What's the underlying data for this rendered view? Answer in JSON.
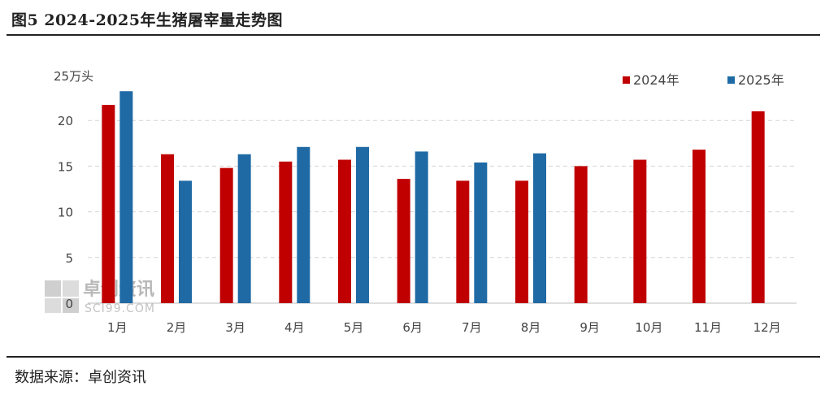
{
  "header": {
    "title": "图5 2024-2025年生猪屠宰量走势图"
  },
  "footer": {
    "source": "数据来源：卓创资讯"
  },
  "watermark": {
    "text": "卓创资讯",
    "sub": "SCI99.COM"
  },
  "chart_data": {
    "type": "bar",
    "unit_label": "25万头",
    "categories": [
      "1月",
      "2月",
      "3月",
      "4月",
      "5月",
      "6月",
      "7月",
      "8月",
      "9月",
      "10月",
      "11月",
      "12月"
    ],
    "series": [
      {
        "name": "2024年",
        "color": "#c00000",
        "values": [
          21.7,
          16.3,
          14.8,
          15.5,
          15.7,
          13.6,
          13.4,
          13.4,
          15.0,
          15.7,
          16.8,
          21.0
        ]
      },
      {
        "name": "2025年",
        "color": "#1f6aa5",
        "values": [
          23.2,
          13.4,
          16.3,
          17.1,
          17.1,
          16.6,
          15.4,
          16.4,
          null,
          null,
          null,
          null
        ]
      }
    ],
    "yticks": [
      0,
      5,
      10,
      15,
      20
    ],
    "ylim": [
      0,
      25
    ],
    "grid": true,
    "legend": "top-right"
  }
}
